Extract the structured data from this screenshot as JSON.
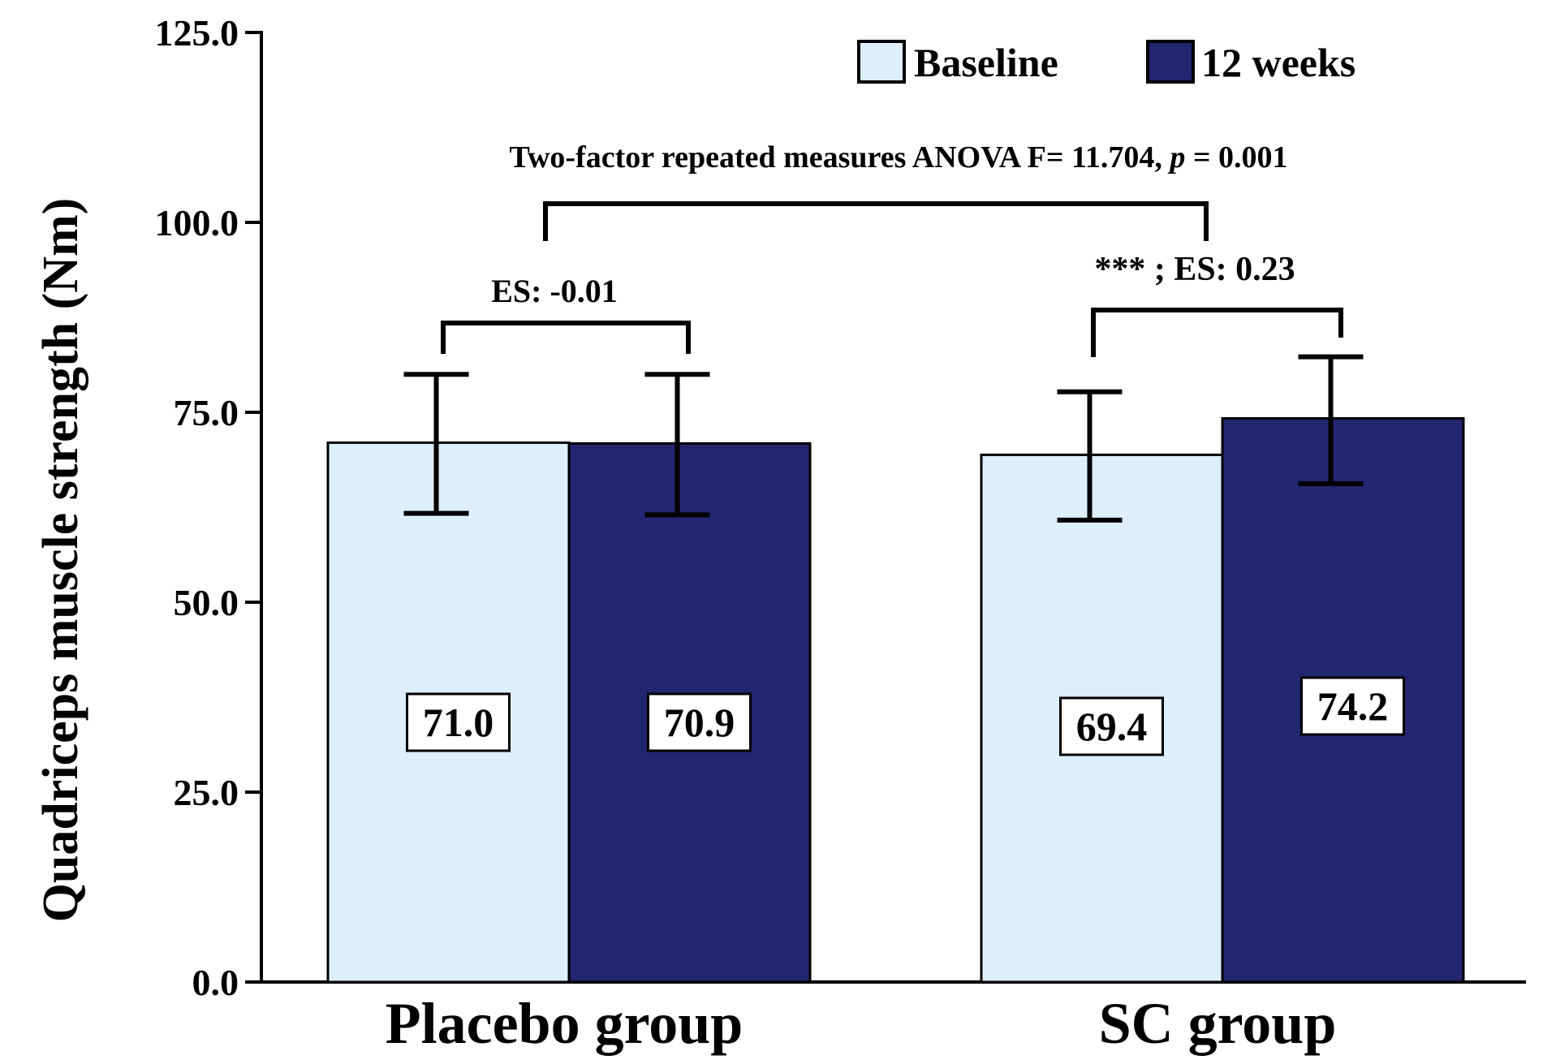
{
  "chart_data": {
    "type": "bar",
    "ylabel": "Quadriceps muscle strength (Nm)",
    "ylim": [
      0,
      125
    ],
    "yticks": [
      "0.0",
      "25.0",
      "50.0",
      "75.0",
      "100.0",
      "125.0"
    ],
    "categories": [
      "Placebo group",
      "SC group"
    ],
    "series": [
      {
        "name": "Baseline",
        "color": "#ddeefc",
        "values": [
          71.0,
          69.4
        ],
        "labels": [
          "71.0",
          "69.4"
        ],
        "err_low": [
          61.7,
          60.8
        ],
        "err_high": [
          80.0,
          77.7
        ]
      },
      {
        "name": "12 weeks",
        "color": "#22256f",
        "values": [
          70.9,
          74.2
        ],
        "labels": [
          "70.9",
          "74.2"
        ],
        "err_low": [
          61.5,
          65.6
        ],
        "err_high": [
          80.0,
          82.3
        ]
      }
    ],
    "annotations": {
      "anova_prefix": "Two-factor repeated measures ANOVA  F= 11.704, ",
      "anova_p": "p",
      "anova_suffix": " = 0.001",
      "placebo_es": "ES: -0.01",
      "sc_es": "*** ; ES: 0.23"
    },
    "legend_position": "top-right"
  }
}
